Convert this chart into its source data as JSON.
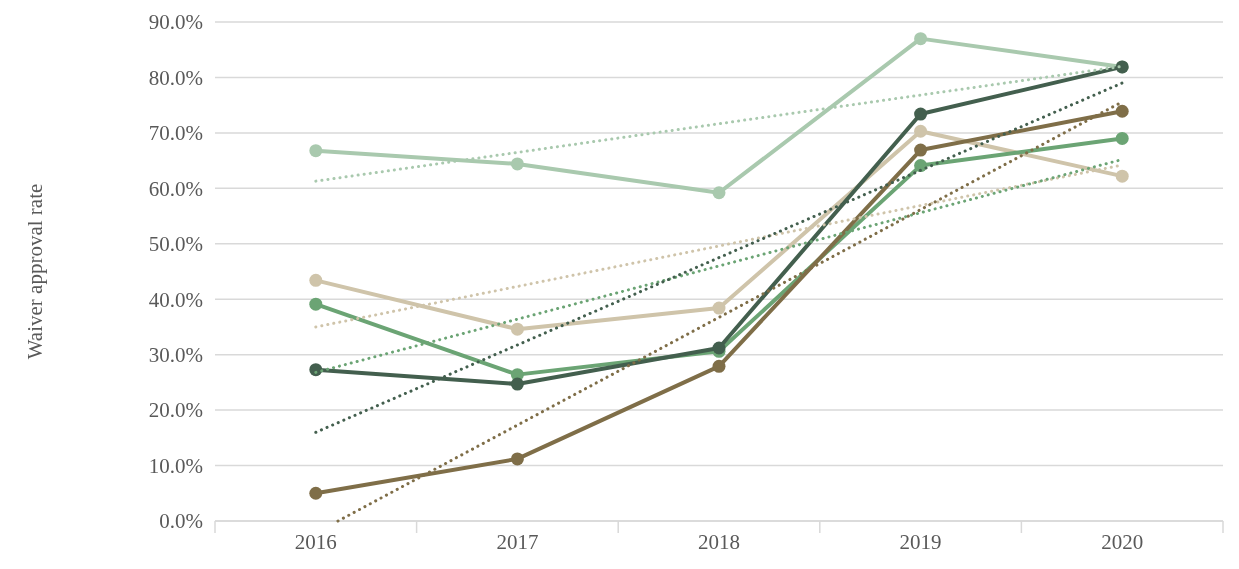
{
  "chart_data": {
    "type": "line",
    "ylabel": "Waiver approval rate",
    "xlim": [
      2015.5,
      2020.5
    ],
    "xticks": [
      2016,
      2017,
      2018,
      2019,
      2020
    ],
    "ylim": [
      0,
      90
    ],
    "yticks": [
      {
        "value": 0,
        "label": "0.0%"
      },
      {
        "value": 10,
        "label": "10.0%"
      },
      {
        "value": 20,
        "label": "20.0%"
      },
      {
        "value": 30,
        "label": "30.0%"
      },
      {
        "value": 40,
        "label": "40.0%"
      },
      {
        "value": 50,
        "label": "50.0%"
      },
      {
        "value": 60,
        "label": "60.0%"
      },
      {
        "value": 70,
        "label": "70.0%"
      },
      {
        "value": 80,
        "label": "80.0%"
      },
      {
        "value": 90,
        "label": "90.0%"
      }
    ],
    "grid": "y",
    "marker": "circle",
    "line_style": "solid",
    "series": [
      {
        "color": "#a9c9ae",
        "x": [
          2016,
          2017,
          2018,
          2019,
          2020
        ],
        "values": [
          66.8,
          64.4,
          59.2,
          87.0,
          81.9
        ]
      },
      {
        "color": "#cfc4aa",
        "x": [
          2016,
          2017,
          2018,
          2019,
          2020
        ],
        "values": [
          43.4,
          34.6,
          38.4,
          70.3,
          62.2
        ]
      },
      {
        "color": "#6ba474",
        "x": [
          2016,
          2017,
          2018,
          2019,
          2020
        ],
        "values": [
          39.1,
          26.4,
          30.6,
          64.1,
          69.0
        ]
      },
      {
        "color": "#435f4e",
        "x": [
          2016,
          2017,
          2018,
          2019,
          2020
        ],
        "values": [
          27.3,
          24.7,
          31.2,
          73.4,
          81.9
        ]
      },
      {
        "color": "#7f6e48",
        "x": [
          2016,
          2017,
          2018,
          2019,
          2020
        ],
        "values": [
          5.0,
          11.2,
          27.9,
          66.9,
          73.9
        ]
      },
      {
        "type": "line",
        "marker": "none",
        "line_style": "dotted",
        "color": "#a9c9ae",
        "x": [
          2016,
          2020
        ],
        "values": [
          61.3,
          82.0
        ]
      },
      {
        "type": "line",
        "marker": "none",
        "line_style": "dotted",
        "color": "#cfc4aa",
        "x": [
          2016,
          2020
        ],
        "values": [
          35.0,
          64.2
        ]
      },
      {
        "type": "line",
        "marker": "none",
        "line_style": "dotted",
        "color": "#6ba474",
        "x": [
          2016,
          2020
        ],
        "values": [
          26.8,
          65.2
        ]
      },
      {
        "type": "line",
        "marker": "none",
        "line_style": "dotted",
        "color": "#435f4e",
        "x": [
          2016,
          2020
        ],
        "values": [
          16.0,
          79.0
        ]
      },
      {
        "type": "line",
        "marker": "none",
        "line_style": "dotted",
        "color": "#7f6e48",
        "x": [
          2016.11,
          2020
        ],
        "values": [
          0,
          75.6
        ]
      }
    ]
  }
}
